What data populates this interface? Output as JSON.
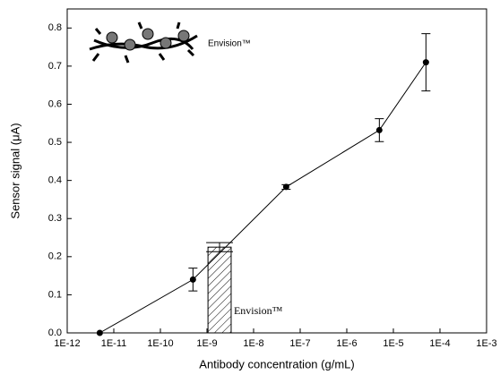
{
  "chart_data": {
    "type": "line",
    "xlabel": "Antibody concentration (g/mL)",
    "ylabel": "Sensor signal (μA)",
    "x": [
      5e-12,
      5e-10,
      5e-08,
      5e-06,
      5e-05
    ],
    "values": [
      0.0,
      0.14,
      0.383,
      0.532,
      0.71
    ],
    "errors": [
      0.0,
      0.03,
      0.006,
      0.03,
      0.075
    ],
    "color": "#000000",
    "xscale": "log",
    "xlim": [
      1e-12,
      0.001
    ],
    "xticks": [
      {
        "value": 1e-12,
        "label": "1E-12"
      },
      {
        "value": 1e-11,
        "label": "1E-11"
      },
      {
        "value": 1e-10,
        "label": "1E-10"
      },
      {
        "value": 1e-09,
        "label": "1E-9"
      },
      {
        "value": 1e-08,
        "label": "1E-8"
      },
      {
        "value": 1e-07,
        "label": "1E-7"
      },
      {
        "value": 1e-06,
        "label": "1E-6"
      },
      {
        "value": 1e-05,
        "label": "1E-5"
      },
      {
        "value": 0.0001,
        "label": "1E-4"
      },
      {
        "value": 0.001,
        "label": "1E-3"
      }
    ],
    "ylim": [
      0,
      0.85
    ],
    "yticks": [
      {
        "value": 0,
        "label": "0.0"
      },
      0.1,
      0.2,
      0.3,
      0.4,
      0.5,
      0.6,
      0.7,
      0.8
    ],
    "bar": {
      "x_range": [
        1.05e-09,
        3.3e-09
      ],
      "value": 0.225,
      "error": 0.012,
      "label": "Envision™"
    },
    "legend_label": "Envision™"
  }
}
